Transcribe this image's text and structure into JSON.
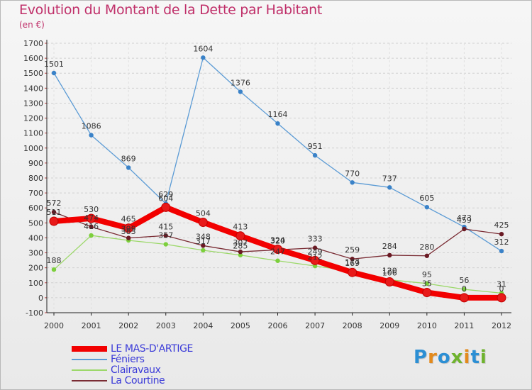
{
  "title": "Evolution du Montant de la Dette par Habitant",
  "unit_label": "(en €)",
  "logo": {
    "text": "Proxiti",
    "colors": [
      "#2c8fd4",
      "#e38a1c",
      "#2c8fd4",
      "#6fb32e",
      "#e38a1c",
      "#2c8fd4",
      "#6fb32e"
    ]
  },
  "chart_data": {
    "type": "line",
    "title": "Evolution du Montant de la Dette par Habitant",
    "ylabel": "(en €)",
    "xlabel": "",
    "x": [
      "2000",
      "2001",
      "2002",
      "2003",
      "2004",
      "2005",
      "2006",
      "2007",
      "2008",
      "2009",
      "2010",
      "2011",
      "2012"
    ],
    "ylim": [
      -100,
      1700
    ],
    "y_ticks": [
      "-100",
      "0",
      "100",
      "200",
      "300",
      "400",
      "500",
      "600",
      "700",
      "800",
      "900",
      "1000",
      "1100",
      "1200",
      "1300",
      "1400",
      "1500",
      "1600",
      "1700"
    ],
    "grid": "horizontal-dashed",
    "legend_position": "bottom-left",
    "series": [
      {
        "name": "LE MAS-D'ARTIGE",
        "color": "#f20000",
        "marker": "#e81a1a",
        "values": [
          511,
          530,
          465,
          604,
          504,
          413,
          324,
          249,
          169,
          106,
          35,
          0,
          0
        ],
        "labels": [
          "511",
          "530",
          "465",
          "604",
          "504",
          "413",
          "324",
          "249",
          "169",
          "106",
          "35",
          "0",
          "0"
        ]
      },
      {
        "name": "Féniers",
        "color": "#5b9bd5",
        "marker": "#3a82c8",
        "values": [
          1501,
          1086,
          869,
          629,
          1604,
          1376,
          1164,
          951,
          770,
          737,
          605,
          473,
          312
        ],
        "labels": [
          "1501",
          "1086",
          "869",
          "629",
          "1604",
          "1376",
          "1164",
          "951",
          "770",
          "737",
          "605",
          "473",
          "312"
        ]
      },
      {
        "name": "Clairavaux",
        "color": "#9cd86a",
        "marker": "#7ccf3c",
        "values": [
          188,
          416,
          383,
          357,
          317,
          285,
          247,
          212,
          177,
          120,
          95,
          56,
          31
        ],
        "labels": [
          "188",
          "416",
          "383",
          "357",
          "317",
          "285",
          "247",
          "212",
          "177",
          "120",
          "95",
          "56",
          "31"
        ]
      },
      {
        "name": "La Courtine",
        "color": "#7a2c34",
        "marker": "#6a1a24",
        "values": [
          572,
          474,
          399,
          415,
          348,
          307,
          320,
          333,
          259,
          284,
          280,
          459,
          425
        ],
        "labels": [
          "572",
          "474",
          "399",
          "415",
          "348",
          "307",
          "320",
          "333",
          "259",
          "284",
          "280",
          "459",
          "425"
        ]
      }
    ]
  }
}
